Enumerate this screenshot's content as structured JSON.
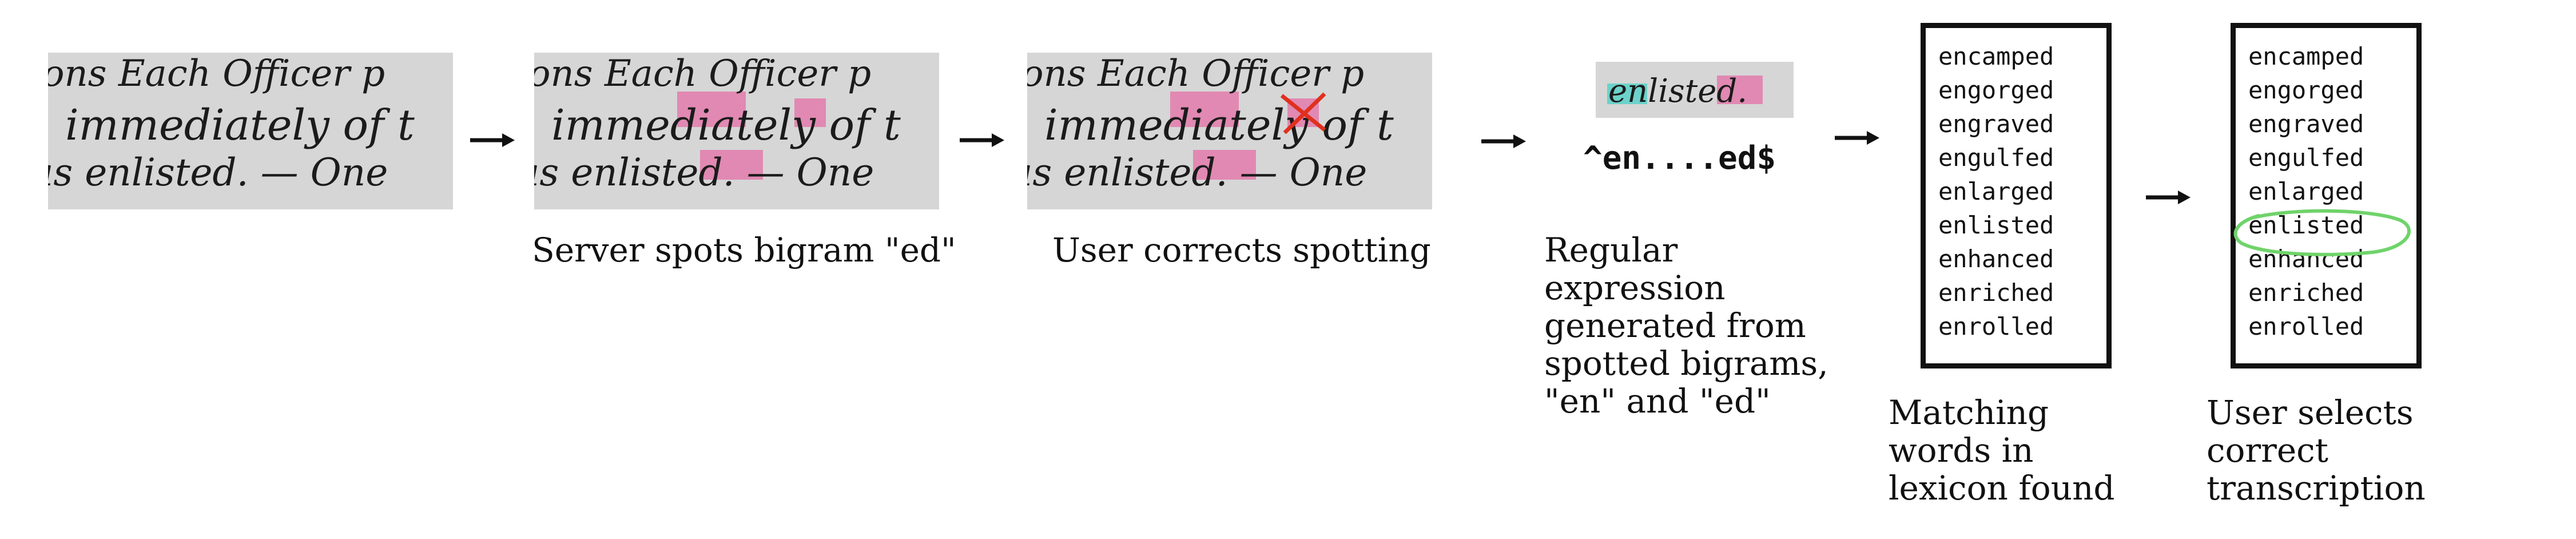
{
  "steps": {
    "step2_caption": "Server spots bigram \"ed\"",
    "step3_caption": "User corrects spotting",
    "step4_caption": "Regular expression generated from spotted bigrams, \"en\" and \"ed\"",
    "step4_regex": "^en....ed$",
    "step5_caption": "Matching words in lexicon found",
    "step6_caption": "User selects correct transcription"
  },
  "lexicon": {
    "words": [
      "encamped",
      "engorged",
      "engraved",
      "engulfed",
      "enlarged",
      "enlisted",
      "enhanced",
      "enriched",
      "enrolled"
    ],
    "selected_word": "enlisted"
  },
  "handwriting": {
    "line1": "ons Each Officer p",
    "line2": "immediately of t",
    "line3": "as enlisted. — One",
    "word_crop": "enlisted."
  },
  "colors": {
    "spot_highlight": "#e8559a",
    "en_highlight": "#3fd0c4",
    "correction_mark": "#e0301e",
    "selection_circle": "#6fd36a"
  }
}
